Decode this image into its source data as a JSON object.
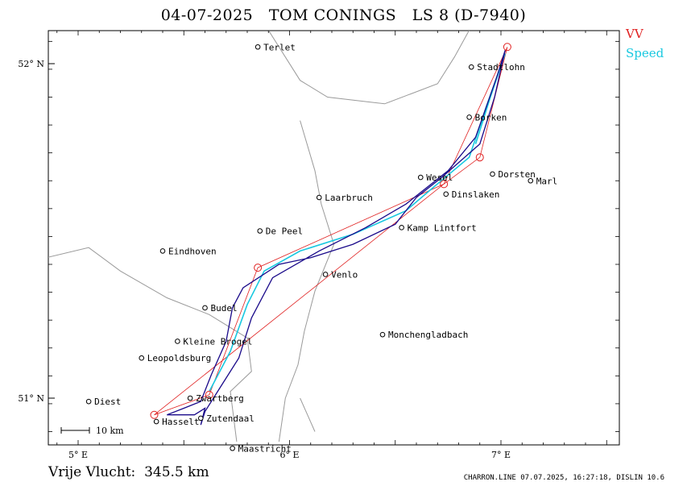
{
  "header": {
    "title": "04-07-2025   TOM CONINGS   LS 8 (D-7940)"
  },
  "legend": {
    "vv_label": "VV",
    "speed_label": "Speed",
    "vv_color": "#e02020",
    "speed_color": "#18c8e0",
    "track_color": "#1a0a8a"
  },
  "map": {
    "lon_range": [
      4.85,
      7.55
    ],
    "lat_range": [
      50.87,
      52.1
    ],
    "lon_ticks": [
      {
        "value": 5.0,
        "label": "5° E"
      },
      {
        "value": 6.0,
        "label": "6° E"
      },
      {
        "value": 7.0,
        "label": "7° E"
      }
    ],
    "lat_ticks": [
      {
        "value": 52.0,
        "label": "52° N"
      },
      {
        "value": 51.0,
        "label": "51° N"
      }
    ],
    "scale_label": "10 km",
    "cities": [
      {
        "name": "Terlet",
        "lon": 5.85,
        "lat": 52.05
      },
      {
        "name": "Stadtlohn",
        "lon": 6.86,
        "lat": 51.99
      },
      {
        "name": "Borken",
        "lon": 6.85,
        "lat": 51.84
      },
      {
        "name": "Wesel",
        "lon": 6.62,
        "lat": 51.66
      },
      {
        "name": "Dorsten",
        "lon": 6.96,
        "lat": 51.67
      },
      {
        "name": "Marl",
        "lon": 7.14,
        "lat": 51.65
      },
      {
        "name": "Dinslaken",
        "lon": 6.74,
        "lat": 51.61
      },
      {
        "name": "Laarbruch",
        "lon": 6.14,
        "lat": 51.6
      },
      {
        "name": "Kamp Lintfort",
        "lon": 6.53,
        "lat": 51.51
      },
      {
        "name": "De Peel",
        "lon": 5.86,
        "lat": 51.5
      },
      {
        "name": "Eindhoven",
        "lon": 5.4,
        "lat": 51.44
      },
      {
        "name": "Venlo",
        "lon": 6.17,
        "lat": 51.37
      },
      {
        "name": "Budel",
        "lon": 5.6,
        "lat": 51.27
      },
      {
        "name": "Monchengladbach",
        "lon": 6.44,
        "lat": 51.19
      },
      {
        "name": "Kleine Brogel",
        "lon": 5.47,
        "lat": 51.17
      },
      {
        "name": "Leopoldsburg",
        "lon": 5.3,
        "lat": 51.12
      },
      {
        "name": "Diest",
        "lon": 5.05,
        "lat": 50.99
      },
      {
        "name": "Zwartberg",
        "lon": 5.53,
        "lat": 51.0
      },
      {
        "name": "Hasselt",
        "lon": 5.37,
        "lat": 50.93
      },
      {
        "name": "Zutendaal",
        "lon": 5.58,
        "lat": 50.94
      },
      {
        "name": "Maastricht",
        "lon": 5.73,
        "lat": 50.85
      }
    ],
    "turnpoints": [
      {
        "lon": 7.03,
        "lat": 52.05
      },
      {
        "lon": 6.9,
        "lat": 51.72
      },
      {
        "lon": 6.73,
        "lat": 51.64
      },
      {
        "lon": 5.85,
        "lat": 51.39
      },
      {
        "lon": 5.62,
        "lat": 51.01
      },
      {
        "lon": 5.36,
        "lat": 50.95
      }
    ],
    "task_route": [
      {
        "lon": 7.03,
        "lat": 52.05
      },
      {
        "lon": 6.9,
        "lat": 51.72
      },
      {
        "lon": 6.73,
        "lat": 51.64
      },
      {
        "lon": 5.85,
        "lat": 51.39
      },
      {
        "lon": 5.62,
        "lat": 51.01
      },
      {
        "lon": 5.36,
        "lat": 50.95
      },
      {
        "lon": 6.73,
        "lat": 51.64
      },
      {
        "lon": 7.03,
        "lat": 52.05
      }
    ],
    "flight_track": [
      {
        "lon": 5.58,
        "lat": 50.92
      },
      {
        "lon": 5.6,
        "lat": 50.97
      },
      {
        "lon": 5.55,
        "lat": 50.95
      },
      {
        "lon": 5.42,
        "lat": 50.95
      },
      {
        "lon": 5.5,
        "lat": 50.97
      },
      {
        "lon": 5.58,
        "lat": 50.99
      },
      {
        "lon": 5.63,
        "lat": 51.07
      },
      {
        "lon": 5.7,
        "lat": 51.17
      },
      {
        "lon": 5.73,
        "lat": 51.27
      },
      {
        "lon": 5.78,
        "lat": 51.33
      },
      {
        "lon": 5.95,
        "lat": 51.4
      },
      {
        "lon": 6.1,
        "lat": 51.42
      },
      {
        "lon": 6.3,
        "lat": 51.46
      },
      {
        "lon": 6.5,
        "lat": 51.52
      },
      {
        "lon": 6.6,
        "lat": 51.6
      },
      {
        "lon": 6.72,
        "lat": 51.66
      },
      {
        "lon": 6.9,
        "lat": 51.76
      },
      {
        "lon": 6.97,
        "lat": 51.9
      },
      {
        "lon": 7.02,
        "lat": 52.04
      },
      {
        "lon": 6.98,
        "lat": 51.96
      },
      {
        "lon": 6.88,
        "lat": 51.78
      },
      {
        "lon": 6.75,
        "lat": 51.68
      },
      {
        "lon": 6.55,
        "lat": 51.58
      },
      {
        "lon": 6.36,
        "lat": 51.51
      },
      {
        "lon": 6.14,
        "lat": 51.44
      },
      {
        "lon": 5.92,
        "lat": 51.36
      },
      {
        "lon": 5.82,
        "lat": 51.24
      },
      {
        "lon": 5.76,
        "lat": 51.12
      },
      {
        "lon": 5.68,
        "lat": 51.04
      },
      {
        "lon": 5.6,
        "lat": 50.96
      },
      {
        "lon": 5.58,
        "lat": 50.92
      }
    ],
    "speed_track": [
      {
        "lon": 5.62,
        "lat": 51.02
      },
      {
        "lon": 5.72,
        "lat": 51.14
      },
      {
        "lon": 5.8,
        "lat": 51.28
      },
      {
        "lon": 5.88,
        "lat": 51.38
      },
      {
        "lon": 6.05,
        "lat": 51.44
      },
      {
        "lon": 6.3,
        "lat": 51.49
      },
      {
        "lon": 6.55,
        "lat": 51.56
      },
      {
        "lon": 6.68,
        "lat": 51.63
      },
      {
        "lon": 6.85,
        "lat": 51.72
      },
      {
        "lon": 6.93,
        "lat": 51.87
      },
      {
        "lon": 7.02,
        "lat": 52.03
      },
      {
        "lon": 6.95,
        "lat": 51.9
      },
      {
        "lon": 6.88,
        "lat": 51.76
      }
    ],
    "borders": [
      [
        {
          "lon": 5.9,
          "lat": 52.1
        },
        {
          "lon": 6.05,
          "lat": 51.95
        },
        {
          "lon": 6.18,
          "lat": 51.9
        },
        {
          "lon": 6.45,
          "lat": 51.88
        },
        {
          "lon": 6.7,
          "lat": 51.94
        },
        {
          "lon": 6.78,
          "lat": 52.02
        },
        {
          "lon": 6.85,
          "lat": 52.1
        }
      ],
      [
        {
          "lon": 6.05,
          "lat": 51.83
        },
        {
          "lon": 6.12,
          "lat": 51.68
        },
        {
          "lon": 6.15,
          "lat": 51.58
        },
        {
          "lon": 6.21,
          "lat": 51.46
        },
        {
          "lon": 6.12,
          "lat": 51.32
        },
        {
          "lon": 6.07,
          "lat": 51.2
        },
        {
          "lon": 6.04,
          "lat": 51.1
        },
        {
          "lon": 5.98,
          "lat": 51.0
        },
        {
          "lon": 5.95,
          "lat": 50.87
        }
      ],
      [
        {
          "lon": 4.85,
          "lat": 51.42
        },
        {
          "lon": 5.05,
          "lat": 51.45
        },
        {
          "lon": 5.2,
          "lat": 51.38
        },
        {
          "lon": 5.42,
          "lat": 51.3
        },
        {
          "lon": 5.62,
          "lat": 51.25
        },
        {
          "lon": 5.8,
          "lat": 51.18
        },
        {
          "lon": 5.82,
          "lat": 51.08
        },
        {
          "lon": 5.72,
          "lat": 51.02
        },
        {
          "lon": 5.75,
          "lat": 50.87
        }
      ],
      [
        {
          "lon": 6.05,
          "lat": 51.0
        },
        {
          "lon": 6.12,
          "lat": 50.9
        }
      ]
    ]
  },
  "footer": {
    "flight_text": "Vrije Vlucht:  345.5 km",
    "credit_text": "CHARRON.LINE 07.07.2025, 16:27:18, DISLIN 10.6"
  }
}
